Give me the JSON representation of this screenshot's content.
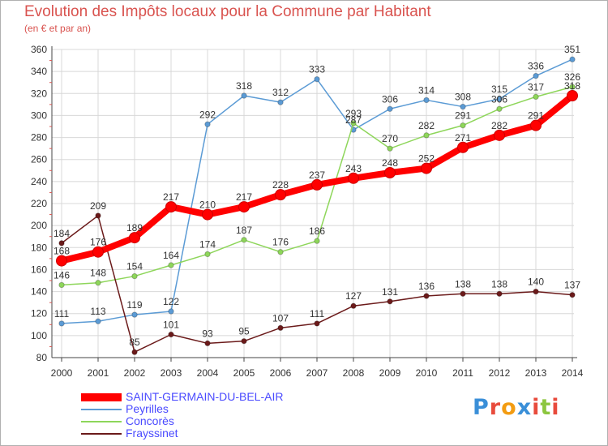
{
  "title": "Evolution des Impôts locaux pour la Commune par Habitant",
  "subtitle": "(en € et par an)",
  "logo": {
    "text": "Proxiti",
    "letter_colors": [
      "#3a8fd8",
      "#e84b3c",
      "#f39c12",
      "#3a8fd8",
      "#e84b3c",
      "#8cc63f",
      "#e84b3c"
    ]
  },
  "colors": {
    "saint_germain": "#ff0000",
    "peyrilles": "#5b9bd5",
    "concores": "#8ed65a",
    "frayssinet": "#6b1a1a",
    "grid": "#d8d8d8",
    "title": "#d9534f"
  },
  "chart_data": {
    "type": "line",
    "title": "Evolution des Impôts locaux pour la Commune par Habitant",
    "subtitle": "(en € et par an)",
    "x": [
      "2000",
      "2001",
      "2002",
      "2003",
      "2004",
      "2005",
      "2006",
      "2007",
      "2008",
      "2009",
      "2010",
      "2011",
      "2012",
      "2013",
      "2014"
    ],
    "ylim": [
      80,
      360
    ],
    "yticks": [
      80,
      100,
      120,
      140,
      160,
      180,
      200,
      220,
      240,
      260,
      280,
      300,
      320,
      340,
      360
    ],
    "grid": true,
    "legend_position": "bottom-left",
    "series": [
      {
        "name": "SAINT-GERMAIN-DU-BEL-AIR",
        "color": "#ff0000",
        "values": [
          168,
          176,
          189,
          217,
          210,
          217,
          228,
          237,
          243,
          248,
          252,
          271,
          282,
          291,
          318
        ]
      },
      {
        "name": "Peyrilles",
        "color": "#5b9bd5",
        "values": [
          111,
          113,
          119,
          122,
          292,
          318,
          312,
          333,
          287,
          306,
          314,
          308,
          315,
          336,
          351
        ]
      },
      {
        "name": "Concorès",
        "color": "#8ed65a",
        "values": [
          146,
          148,
          154,
          164,
          174,
          187,
          176,
          186,
          293,
          270,
          282,
          291,
          306,
          317,
          326
        ]
      },
      {
        "name": "Frayssinet",
        "color": "#6b1a1a",
        "values": [
          184,
          209,
          85,
          101,
          93,
          95,
          107,
          111,
          127,
          131,
          136,
          138,
          138,
          140,
          137
        ]
      }
    ]
  }
}
